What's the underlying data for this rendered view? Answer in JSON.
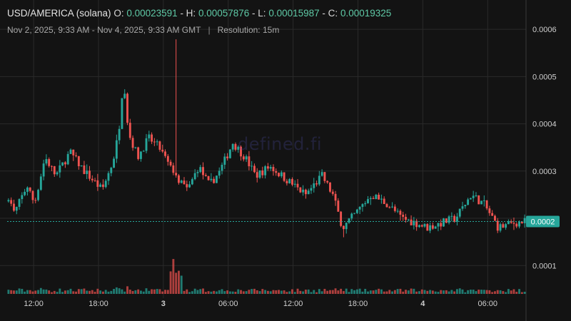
{
  "header": {
    "symbol": "USD/AMERICA (solana)",
    "open_label": "O:",
    "open": "0.00023591",
    "high_label": "- H:",
    "high": "0.00057876",
    "low_label": "- L:",
    "low": "0.00015987",
    "close_label": "- C:",
    "close": "0.00019325",
    "range": "Nov 2, 2025, 9:33 AM - Nov 4, 2025, 9:33 AM GMT",
    "separator": "|",
    "resolution": "Resolution: 15m"
  },
  "watermark": "defined.fi",
  "colors": {
    "background": "#131313",
    "up": "#26a69a",
    "down": "#ef5350",
    "grid": "#2a2a2a",
    "axis_text": "#cfcfcf",
    "last_price_bg": "#26a69a"
  },
  "last_price_label": "0.0002",
  "chart_data": {
    "type": "candlestick",
    "y_axis": {
      "range": [
        4e-05,
        0.00065
      ],
      "ticks": [
        0.0001,
        0.0002,
        0.0003,
        0.0004,
        0.0005,
        0.0006
      ],
      "tick_labels": [
        "0.0001",
        "0.0002",
        "0.0003",
        "0.0004",
        "0.0005",
        "0.0006"
      ]
    },
    "x_axis": {
      "ticks": [
        "Nov 2 12:00",
        "Nov 2 18:00",
        "Nov 3 00:00",
        "Nov 3 06:00",
        "Nov 3 12:00",
        "Nov 3 18:00",
        "Nov 4 00:00",
        "Nov 4 06:00"
      ],
      "tick_labels": [
        "12:00",
        "18:00",
        "3",
        "06:00",
        "12:00",
        "18:00",
        "4",
        "06:00"
      ],
      "bold": [
        false,
        false,
        true,
        false,
        false,
        false,
        true,
        false
      ],
      "start": "Nov 2, 2025, 9:33 AM",
      "end": "Nov 4, 2025, 9:33 AM"
    },
    "grid": true,
    "last_price": 0.00019325,
    "interval_minutes": 15,
    "volume_panel": true
  }
}
